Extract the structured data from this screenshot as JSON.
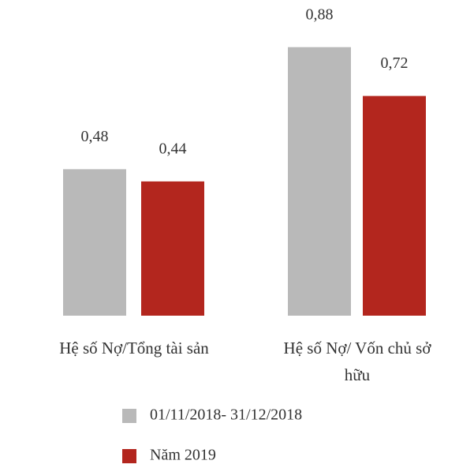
{
  "chart_data": {
    "type": "bar",
    "categories": [
      "Hệ số Nợ/Tổng tài sản",
      "Hệ số Nợ/ Vốn chủ sở hữu"
    ],
    "series": [
      {
        "name": "01/11/2018- 31/12/2018",
        "color": "#b9b9b9",
        "values": [
          0.48,
          0.88
        ],
        "value_labels": [
          "0,48",
          "0,88"
        ]
      },
      {
        "name": "Năm 2019",
        "color": "#b3261e",
        "values": [
          0.44,
          0.72
        ],
        "value_labels": [
          "0,44",
          "0,72"
        ]
      }
    ],
    "ylim": [
      0,
      0.9
    ],
    "grid": false
  }
}
